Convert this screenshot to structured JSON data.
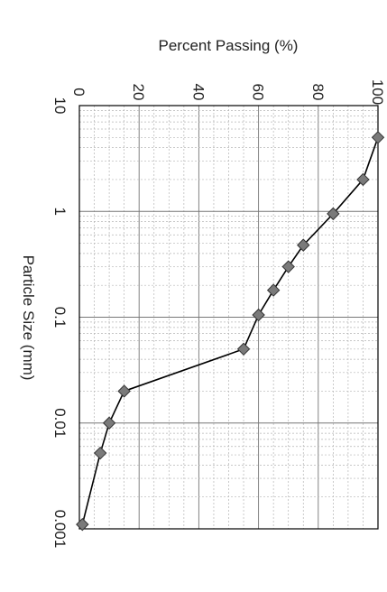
{
  "chart_data": {
    "type": "scatter",
    "orientation": "rotated-90-clockwise",
    "title": "",
    "xlabel": "Particle Size (mm)",
    "ylabel": "Percent Passing (%)",
    "x_scale": "log",
    "x_reversed": true,
    "xlim": [
      0.001,
      10
    ],
    "ylim": [
      0,
      100
    ],
    "x_ticks": [
      "10",
      "1",
      "0.1",
      "0.01",
      "0.001"
    ],
    "y_ticks": [
      "0",
      "20",
      "40",
      "60",
      "80",
      "100"
    ],
    "grid": true,
    "legend": "none",
    "marker": "diamond",
    "colors": {
      "marker": "#7a7a7a",
      "line": "#000000",
      "grid_major": "#777777",
      "grid_minor": "#b5b5b5"
    },
    "series": [
      {
        "x": [
          5,
          2,
          0.95,
          0.48,
          0.3,
          0.18,
          0.105,
          0.05,
          0.02,
          0.01,
          0.0052,
          0.0011
        ],
        "y": [
          100,
          95,
          85,
          75,
          70,
          65,
          60,
          55,
          15,
          10,
          7,
          1
        ]
      }
    ]
  }
}
